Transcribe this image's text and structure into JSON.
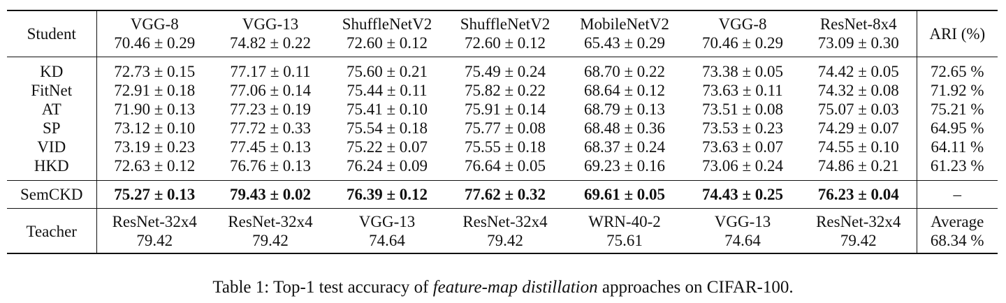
{
  "table": {
    "header": {
      "label": "Student",
      "columns": [
        {
          "name": "VGG-8",
          "acc": "70.46 ± 0.29"
        },
        {
          "name": "VGG-13",
          "acc": "74.82 ± 0.22"
        },
        {
          "name": "ShuffleNetV2",
          "acc": "72.60 ± 0.12"
        },
        {
          "name": "ShuffleNetV2",
          "acc": "72.60 ± 0.12"
        },
        {
          "name": "MobileNetV2",
          "acc": "65.43 ± 0.29"
        },
        {
          "name": "VGG-8",
          "acc": "70.46 ± 0.29"
        },
        {
          "name": "ResNet-8x4",
          "acc": "73.09 ± 0.30"
        }
      ],
      "ari": "ARI (%)"
    },
    "methods": [
      {
        "name": "KD",
        "values": [
          "72.73 ± 0.15",
          "77.17 ± 0.11",
          "75.60 ± 0.21",
          "75.49 ± 0.24",
          "68.70 ± 0.22",
          "73.38 ± 0.05",
          "74.42 ± 0.05"
        ],
        "ari": "72.65 %"
      },
      {
        "name": "FitNet",
        "values": [
          "72.91 ± 0.18",
          "77.06 ± 0.14",
          "75.44 ± 0.11",
          "75.82 ± 0.22",
          "68.64 ± 0.12",
          "73.63 ± 0.11",
          "74.32 ± 0.08"
        ],
        "ari": "71.92 %"
      },
      {
        "name": "AT",
        "values": [
          "71.90 ± 0.13",
          "77.23 ± 0.19",
          "75.41 ± 0.10",
          "75.91 ± 0.14",
          "68.79 ± 0.13",
          "73.51 ± 0.08",
          "75.07 ± 0.03"
        ],
        "ari": "75.21 %"
      },
      {
        "name": "SP",
        "values": [
          "73.12 ± 0.10",
          "77.72 ± 0.33",
          "75.54 ± 0.18",
          "75.77 ± 0.08",
          "68.48 ± 0.36",
          "73.53 ± 0.23",
          "74.29 ± 0.07"
        ],
        "ari": "64.95 %"
      },
      {
        "name": "VID",
        "values": [
          "73.19 ± 0.23",
          "77.45 ± 0.13",
          "75.22 ± 0.07",
          "75.55 ± 0.18",
          "68.37 ± 0.24",
          "73.63 ± 0.07",
          "74.55 ± 0.10"
        ],
        "ari": "64.11 %"
      },
      {
        "name": "HKD",
        "values": [
          "72.63 ± 0.12",
          "76.76 ± 0.13",
          "76.24 ± 0.09",
          "76.64 ± 0.05",
          "69.23 ± 0.16",
          "73.06 ± 0.24",
          "74.86 ± 0.21"
        ],
        "ari": "61.23 %"
      }
    ],
    "semckd": {
      "name": "SemCKD",
      "values": [
        "75.27 ± 0.13",
        "79.43 ± 0.02",
        "76.39 ± 0.12",
        "77.62 ± 0.32",
        "69.61 ± 0.05",
        "74.43 ± 0.25",
        "76.23 ± 0.04"
      ],
      "ari": "–"
    },
    "teacher": {
      "label": "Teacher",
      "columns": [
        {
          "name": "ResNet-32x4",
          "acc": "79.42"
        },
        {
          "name": "ResNet-32x4",
          "acc": "79.42"
        },
        {
          "name": "VGG-13",
          "acc": "74.64"
        },
        {
          "name": "ResNet-32x4",
          "acc": "79.42"
        },
        {
          "name": "WRN-40-2",
          "acc": "75.61"
        },
        {
          "name": "VGG-13",
          "acc": "74.64"
        },
        {
          "name": "ResNet-32x4",
          "acc": "79.42"
        }
      ],
      "average_label": "Average",
      "average_value": "68.34 %"
    }
  },
  "caption": {
    "prefix": "Table 1: Top-1 test accuracy of ",
    "emphasis": "feature-map distillation",
    "suffix": " approaches on CIFAR-100."
  }
}
